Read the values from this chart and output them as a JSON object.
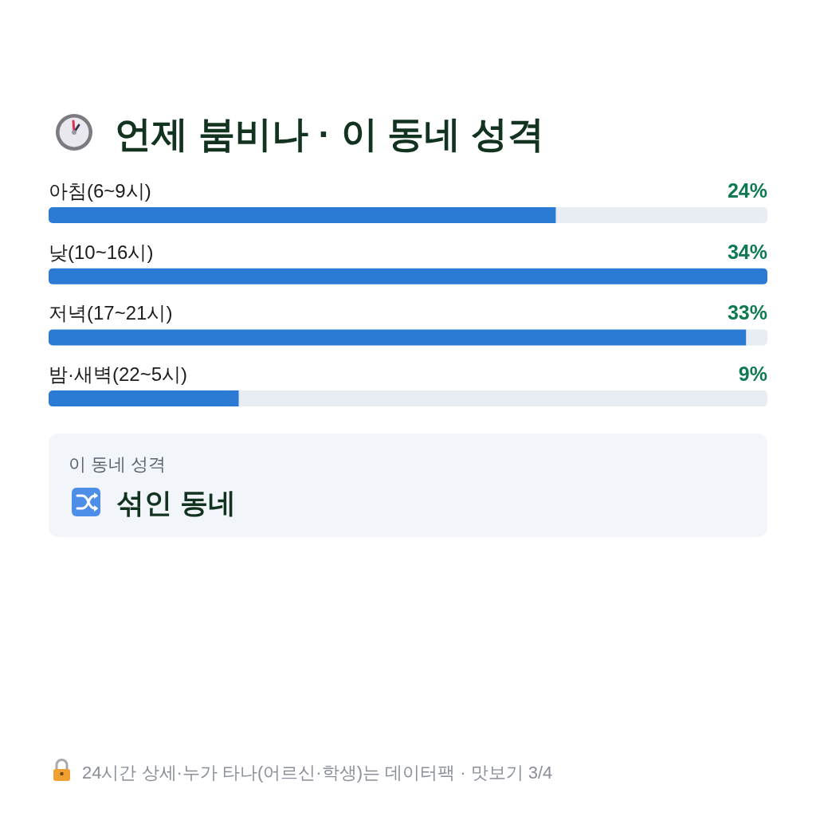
{
  "chart_data": {
    "type": "bar",
    "orientation": "horizontal",
    "title": "언제 붐비나 · 이 동네 성격",
    "categories": [
      "아침(6~9시)",
      "낮(10~16시)",
      "저녁(17~21시)",
      "밤·새벽(22~5시)"
    ],
    "values": [
      24,
      34,
      33,
      9
    ],
    "value_labels": [
      "24%",
      "34%",
      "33%",
      "9%"
    ],
    "color": "#2b7bd4",
    "xlim": [
      0,
      34
    ],
    "tick_labels": "y",
    "annotations": [
      "이 동네 성격",
      "섞인 동네",
      "24시간 상세·누가 타나(어르신·학생)는 데이터팩 · 맛보기 3/4"
    ]
  }
}
